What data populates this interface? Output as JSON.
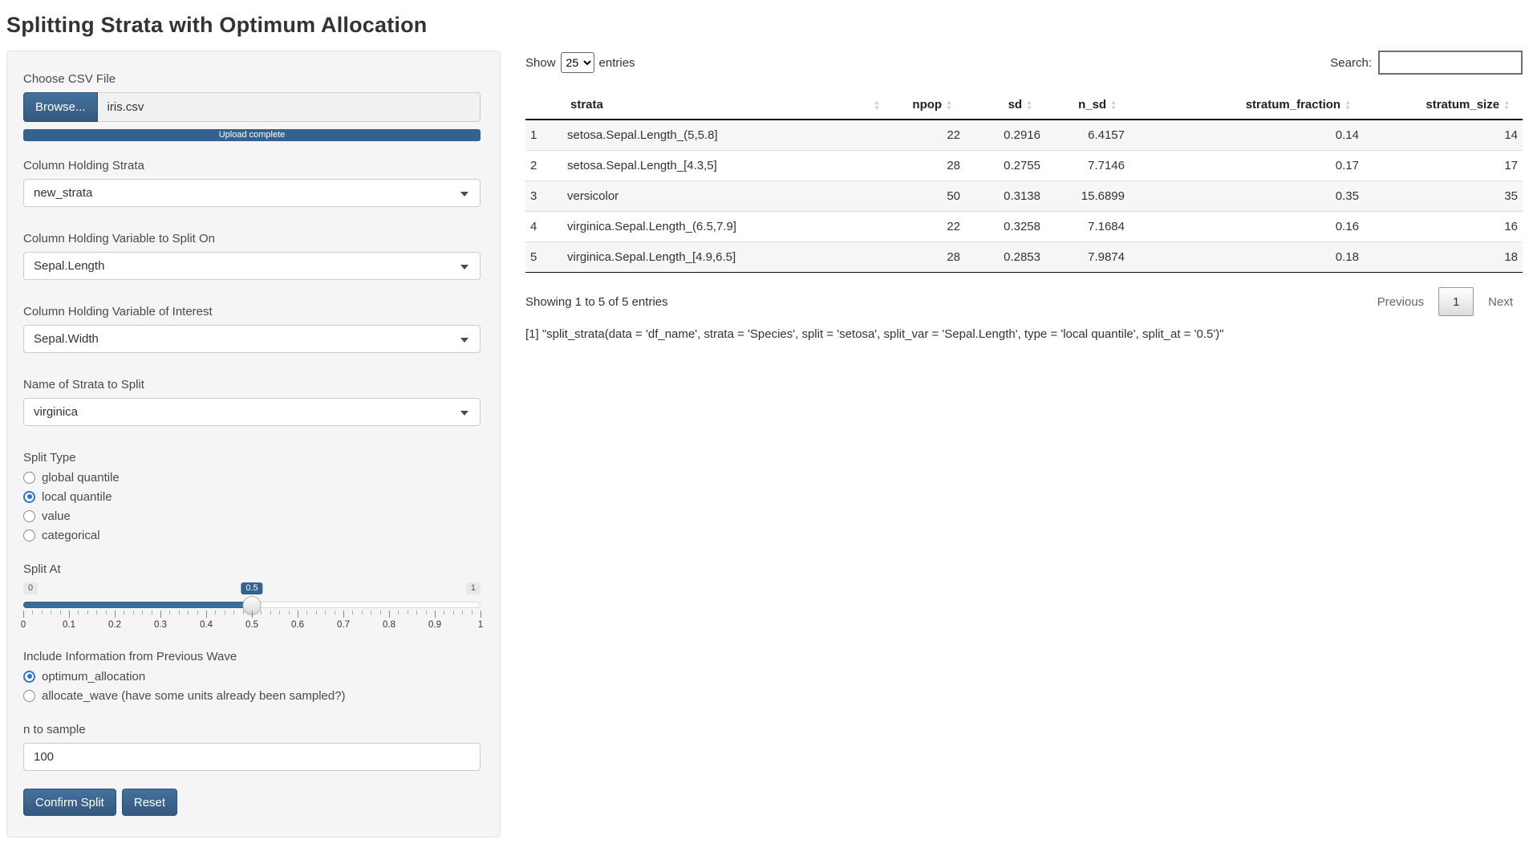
{
  "title": "Splitting Strata with Optimum Allocation",
  "sidebar": {
    "file_input": {
      "label": "Choose CSV File",
      "browse_label": "Browse...",
      "filename": "iris.csv",
      "progress_text": "Upload complete"
    },
    "selects": [
      {
        "label": "Column Holding Strata",
        "value": "new_strata"
      },
      {
        "label": "Column Holding Variable to Split On",
        "value": "Sepal.Length"
      },
      {
        "label": "Column Holding Variable of Interest",
        "value": "Sepal.Width"
      },
      {
        "label": "Name of Strata to Split",
        "value": "virginica"
      }
    ],
    "split_type": {
      "label": "Split Type",
      "options": [
        "global quantile",
        "local quantile",
        "value",
        "categorical"
      ],
      "selected_index": 1
    },
    "slider": {
      "label": "Split At",
      "min": "0",
      "max": "1",
      "value": "0.5",
      "tick_labels": [
        "0",
        "0.1",
        "0.2",
        "0.3",
        "0.4",
        "0.5",
        "0.6",
        "0.7",
        "0.8",
        "0.9",
        "1"
      ]
    },
    "previous_wave": {
      "label": "Include Information from Previous Wave",
      "options": [
        "optimum_allocation",
        "allocate_wave (have some units already been sampled?)"
      ],
      "selected_index": 0
    },
    "n_input": {
      "label": "n to sample",
      "value": "100"
    },
    "buttons": {
      "confirm": "Confirm Split",
      "reset": "Reset"
    }
  },
  "table": {
    "show_label": "Show",
    "entries_label": "entries",
    "page_length": "25",
    "search_label": "Search:",
    "search_value": "",
    "columns": [
      "",
      "strata",
      "npop",
      "sd",
      "n_sd",
      "stratum_fraction",
      "stratum_size"
    ],
    "rows": [
      [
        "1",
        "setosa.Sepal.Length_(5,5.8]",
        "22",
        "0.2916",
        "6.4157",
        "0.14",
        "14"
      ],
      [
        "2",
        "setosa.Sepal.Length_[4.3,5]",
        "28",
        "0.2755",
        "7.7146",
        "0.17",
        "17"
      ],
      [
        "3",
        "versicolor",
        "50",
        "0.3138",
        "15.6899",
        "0.35",
        "35"
      ],
      [
        "4",
        "virginica.Sepal.Length_(6.5,7.9]",
        "22",
        "0.3258",
        "7.1684",
        "0.16",
        "16"
      ],
      [
        "5",
        "virginica.Sepal.Length_[4.9,6.5]",
        "28",
        "0.2853",
        "7.9874",
        "0.18",
        "18"
      ]
    ],
    "info": "Showing 1 to 5 of 5 entries",
    "pagination": {
      "previous": "Previous",
      "current": "1",
      "next": "Next"
    }
  },
  "console_output": "[1] \"split_strata(data = 'df_name', strata = 'Species', split = 'setosa', split_var = 'Sepal.Length', type = 'local quantile', split_at = '0.5')\""
}
